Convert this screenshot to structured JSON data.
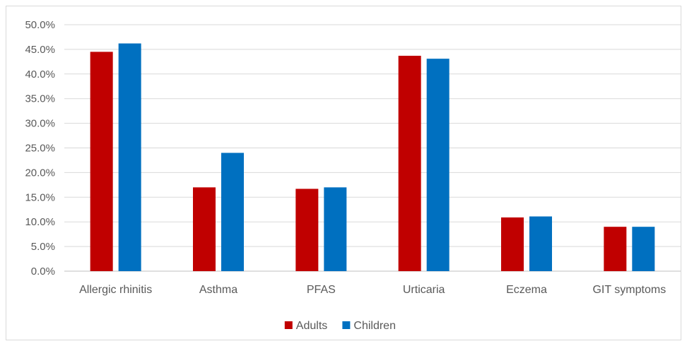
{
  "chart_data": {
    "type": "bar",
    "title": "",
    "xlabel": "",
    "ylabel": "",
    "categories": [
      "Allergic rhinitis",
      "Asthma",
      "PFAS",
      "Urticaria",
      "Eczema",
      "GIT symptoms"
    ],
    "series": [
      {
        "name": "Adults",
        "color": "#c00000",
        "values": [
          44.5,
          17.0,
          16.7,
          43.7,
          10.9,
          9.0
        ]
      },
      {
        "name": "Children",
        "color": "#0070c0",
        "values": [
          46.2,
          24.0,
          17.0,
          43.1,
          11.1,
          9.0
        ]
      }
    ],
    "ylim": [
      0,
      50
    ],
    "yticks": [
      "0.0%",
      "5.0%",
      "10.0%",
      "15.0%",
      "20.0%",
      "25.0%",
      "30.0%",
      "35.0%",
      "40.0%",
      "45.0%",
      "50.0%"
    ],
    "grid": true,
    "legend_position": "bottom"
  }
}
